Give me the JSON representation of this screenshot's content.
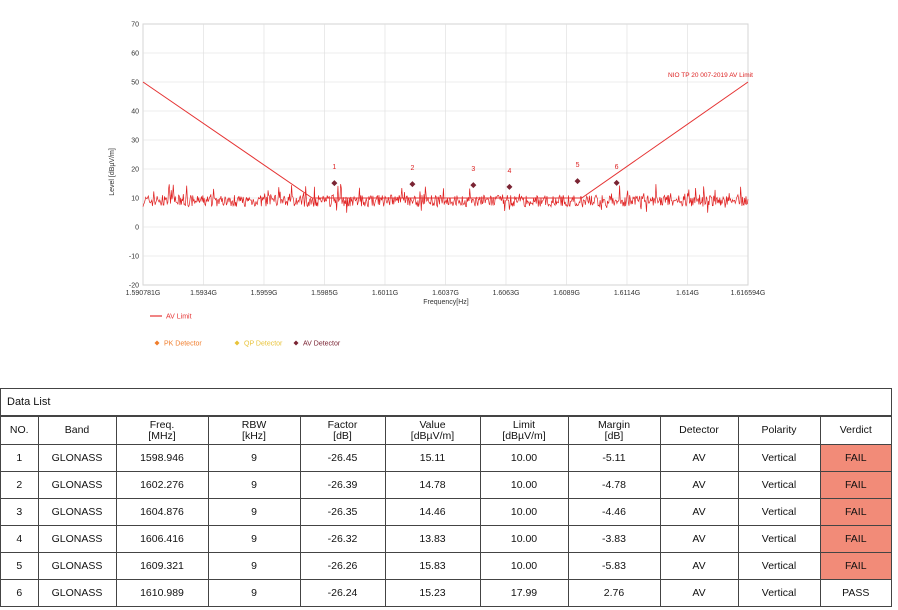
{
  "chart_data": {
    "type": "line",
    "ylabel": "Level [dBµV/m]",
    "xlabel": "Frequency[Hz]",
    "ylim": [
      -20,
      70
    ],
    "yticks": [
      -20,
      -10,
      0,
      10,
      20,
      30,
      40,
      50,
      60,
      70
    ],
    "xlim": [
      1.590781,
      1.616594
    ],
    "xtick_labels": [
      "1.590781G",
      "1.5934G",
      "1.5959G",
      "1.5985G",
      "1.6011G",
      "1.6037G",
      "1.6063G",
      "1.6089G",
      "1.6114G",
      "1.614G",
      "1.616594G"
    ],
    "grid": true,
    "limit_line": {
      "name": "AV Limit",
      "label": "NIO TP 20 007-2019 AV Limit",
      "points": [
        [
          1.590781,
          50
        ],
        [
          1.598,
          10
        ],
        [
          1.6095,
          10
        ],
        [
          1.616594,
          50
        ]
      ]
    },
    "noise_floor_level": 9,
    "markers": [
      {
        "id": "1",
        "x": 1.598946,
        "y": 15.11
      },
      {
        "id": "2",
        "x": 1.602276,
        "y": 14.78
      },
      {
        "id": "3",
        "x": 1.604876,
        "y": 14.46
      },
      {
        "id": "4",
        "x": 1.606416,
        "y": 13.83
      },
      {
        "id": "5",
        "x": 1.609321,
        "y": 15.83
      },
      {
        "id": "6",
        "x": 1.610989,
        "y": 15.23
      }
    ],
    "legend": [
      {
        "label": "AV Limit",
        "color": "#e53333"
      },
      {
        "label": "PK Detector",
        "color": "#f07d2b"
      },
      {
        "label": "QP Detector",
        "color": "#e8c33a"
      },
      {
        "label": "AV Detector",
        "color": "#7a2433"
      }
    ]
  },
  "data_list": {
    "title": "Data List",
    "headers": [
      {
        "line1": "NO.",
        "line2": ""
      },
      {
        "line1": "Band",
        "line2": ""
      },
      {
        "line1": "Freq.",
        "line2": "[MHz]"
      },
      {
        "line1": "RBW",
        "line2": "[kHz]"
      },
      {
        "line1": "Factor",
        "line2": "[dB]"
      },
      {
        "line1": "Value",
        "line2": "[dBµV/m]"
      },
      {
        "line1": "Limit",
        "line2": "[dBµV/m]"
      },
      {
        "line1": "Margin",
        "line2": "[dB]"
      },
      {
        "line1": "Detector",
        "line2": ""
      },
      {
        "line1": "Polarity",
        "line2": ""
      },
      {
        "line1": "Verdict",
        "line2": ""
      }
    ],
    "rows": [
      {
        "no": "1",
        "band": "GLONASS",
        "freq": "1598.946",
        "rbw": "9",
        "factor": "-26.45",
        "value": "15.11",
        "limit": "10.00",
        "margin": "-5.11",
        "detector": "AV",
        "polarity": "Vertical",
        "verdict": "FAIL"
      },
      {
        "no": "2",
        "band": "GLONASS",
        "freq": "1602.276",
        "rbw": "9",
        "factor": "-26.39",
        "value": "14.78",
        "limit": "10.00",
        "margin": "-4.78",
        "detector": "AV",
        "polarity": "Vertical",
        "verdict": "FAIL"
      },
      {
        "no": "3",
        "band": "GLONASS",
        "freq": "1604.876",
        "rbw": "9",
        "factor": "-26.35",
        "value": "14.46",
        "limit": "10.00",
        "margin": "-4.46",
        "detector": "AV",
        "polarity": "Vertical",
        "verdict": "FAIL"
      },
      {
        "no": "4",
        "band": "GLONASS",
        "freq": "1606.416",
        "rbw": "9",
        "factor": "-26.32",
        "value": "13.83",
        "limit": "10.00",
        "margin": "-3.83",
        "detector": "AV",
        "polarity": "Vertical",
        "verdict": "FAIL"
      },
      {
        "no": "5",
        "band": "GLONASS",
        "freq": "1609.321",
        "rbw": "9",
        "factor": "-26.26",
        "value": "15.83",
        "limit": "10.00",
        "margin": "-5.83",
        "detector": "AV",
        "polarity": "Vertical",
        "verdict": "FAIL"
      },
      {
        "no": "6",
        "band": "GLONASS",
        "freq": "1610.989",
        "rbw": "9",
        "factor": "-26.24",
        "value": "15.23",
        "limit": "17.99",
        "margin": "2.76",
        "detector": "AV",
        "polarity": "Vertical",
        "verdict": "PASS"
      }
    ],
    "fail_color": "#f28b78"
  }
}
